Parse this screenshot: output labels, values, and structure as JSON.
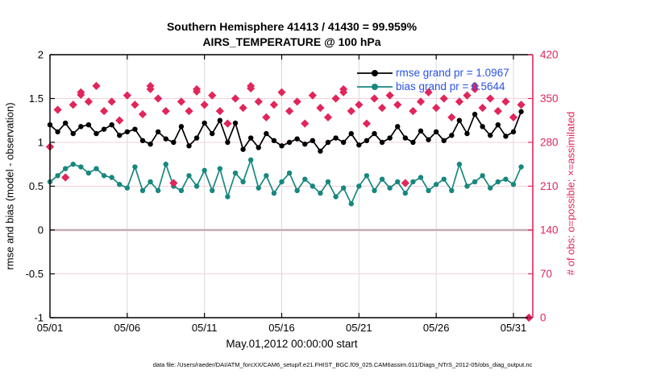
{
  "figure": {
    "background": "#ffffff",
    "footer_text": "data file: /Users/raeder/DAI/ATM_forcXX/CAM6_setup/f.e21.FHIST_BGC.f09_025.CAM6assim.011/Diags_NTrS_2012-05/obs_diag_output.nc"
  },
  "chart_data": {
    "type": "line",
    "title_line1": "Southern Hemisphere 41413 / 41430 = 99.959%",
    "title_line2": "AIRS_TEMPERATURE @ 100 hPa",
    "xlabel": "May.01,2012 00:00:00 start",
    "ylabel_left": "rmse and bias (model - observation)",
    "ylabel_right": "# of obs: o=possible; ×=assimilated",
    "axes": {
      "x_range_days": [
        0,
        31.25
      ],
      "y_left_range": [
        -1,
        2
      ],
      "y_right_range": [
        0,
        420
      ],
      "x_ticks": [
        {
          "day": 0,
          "label": "05/01"
        },
        {
          "day": 5,
          "label": "05/06"
        },
        {
          "day": 10,
          "label": "05/11"
        },
        {
          "day": 15,
          "label": "05/16"
        },
        {
          "day": 20,
          "label": "05/21"
        },
        {
          "day": 25,
          "label": "05/26"
        },
        {
          "day": 30,
          "label": "05/31"
        }
      ],
      "y_left_ticks": [
        "2",
        "1.5",
        "1",
        "0.5",
        "0",
        "-0.5",
        "-1"
      ],
      "y_left_tick_values": [
        2,
        1.5,
        1,
        0.5,
        0,
        -0.5,
        -1
      ],
      "y_right_ticks": [
        "420",
        "350",
        "280",
        "210",
        "140",
        "70",
        "0"
      ],
      "y_right_tick_values": [
        420,
        350,
        280,
        210,
        140,
        70,
        0
      ],
      "grid_h_values_left": [
        1.5,
        1,
        0.5,
        -0.5
      ],
      "zero_line_value": 0
    },
    "legend": {
      "rmse_label": "rmse grand pr = 1.0967",
      "bias_label": "bias grand pr = 0.5644"
    },
    "times_days": [
      0,
      0.5,
      1,
      1.5,
      2,
      2.5,
      3,
      3.5,
      4,
      4.5,
      5,
      5.5,
      6,
      6.5,
      7,
      7.5,
      8,
      8.5,
      9,
      9.5,
      10,
      10.5,
      11,
      11.5,
      12,
      12.5,
      13,
      13.5,
      14,
      14.5,
      15,
      15.5,
      16,
      16.5,
      17,
      17.5,
      18,
      18.5,
      19,
      19.5,
      20,
      20.5,
      21,
      21.5,
      22,
      22.5,
      23,
      23.5,
      24,
      24.5,
      25,
      25.5,
      26,
      26.5,
      27,
      27.5,
      28,
      28.5,
      29,
      29.5,
      30,
      30.5,
      31
    ],
    "series": [
      {
        "name": "rmse",
        "marker": "filled-circle",
        "axis": "left",
        "color": "#000000",
        "values": [
          1.2,
          1.12,
          1.22,
          1.1,
          1.18,
          1.2,
          1.1,
          1.15,
          1.2,
          1.08,
          1.12,
          1.15,
          1.02,
          0.98,
          1.12,
          1.04,
          1.0,
          1.18,
          0.96,
          1.05,
          1.22,
          1.1,
          1.25,
          1.0,
          1.22,
          0.92,
          1.05,
          0.94,
          1.1,
          1.02,
          0.96,
          1.0,
          1.04,
          0.98,
          1.02,
          0.9,
          1.0,
          1.05,
          1.0,
          1.1,
          0.97,
          1.02,
          1.1,
          1.0,
          1.05,
          1.18,
          1.05,
          1.0,
          1.13,
          1.03,
          1.12,
          1.02,
          1.08,
          1.25,
          1.1,
          1.32,
          1.18,
          1.08,
          1.2,
          1.07,
          1.12,
          1.35,
          null
        ]
      },
      {
        "name": "bias",
        "marker": "filled-circle",
        "axis": "left",
        "color": "#17877f",
        "values": [
          0.55,
          0.62,
          0.7,
          0.75,
          0.72,
          0.65,
          0.7,
          0.62,
          0.6,
          0.52,
          0.48,
          0.72,
          0.45,
          0.55,
          0.45,
          0.75,
          0.5,
          0.45,
          0.62,
          0.5,
          0.68,
          0.45,
          0.7,
          0.38,
          0.65,
          0.55,
          0.8,
          0.48,
          0.62,
          0.42,
          0.55,
          0.65,
          0.45,
          0.58,
          0.5,
          0.42,
          0.55,
          0.38,
          0.48,
          0.3,
          0.5,
          0.62,
          0.45,
          0.58,
          0.48,
          0.55,
          0.42,
          0.55,
          0.6,
          0.45,
          0.52,
          0.58,
          0.45,
          0.75,
          0.5,
          0.55,
          0.62,
          0.48,
          0.55,
          0.58,
          0.52,
          0.72,
          null
        ]
      },
      {
        "name": "possible",
        "marker": "diamond",
        "axis": "right",
        "color": "#e0265a",
        "values": [
          273,
          332,
          224,
          340,
          360,
          345,
          370,
          330,
          345,
          315,
          355,
          340,
          325,
          370,
          350,
          330,
          215,
          345,
          330,
          365,
          340,
          355,
          330,
          310,
          350,
          335,
          370,
          345,
          320,
          340,
          360,
          330,
          345,
          310,
          355,
          335,
          320,
          350,
          365,
          330,
          340,
          310,
          350,
          335,
          355,
          340,
          215,
          330,
          345,
          360,
          335,
          350,
          320,
          345,
          355,
          370,
          335,
          350,
          330,
          345,
          320,
          340,
          0
        ]
      },
      {
        "name": "assimilated",
        "marker": "diamond",
        "axis": "right",
        "color": "#e0265a",
        "values": [
          273,
          332,
          224,
          340,
          356,
          345,
          370,
          330,
          345,
          315,
          355,
          340,
          325,
          365,
          350,
          330,
          215,
          345,
          330,
          361,
          340,
          355,
          330,
          310,
          350,
          335,
          366,
          345,
          320,
          340,
          360,
          330,
          345,
          310,
          355,
          335,
          320,
          350,
          360,
          330,
          340,
          310,
          350,
          335,
          355,
          340,
          215,
          330,
          345,
          360,
          335,
          350,
          320,
          345,
          355,
          365,
          335,
          350,
          330,
          345,
          320,
          340,
          0
        ]
      }
    ],
    "colors": {
      "rmse": "#000000",
      "bias": "#17877f",
      "obs": "#e0265a",
      "legend_text": "#2952e8",
      "grid_vertical": "#d8d8d8",
      "grid_horizontal_pink": "#f6d0da",
      "zero_line": "#aaa2a8",
      "spine_black": "#000000",
      "spine_right": "#e0265a"
    }
  }
}
